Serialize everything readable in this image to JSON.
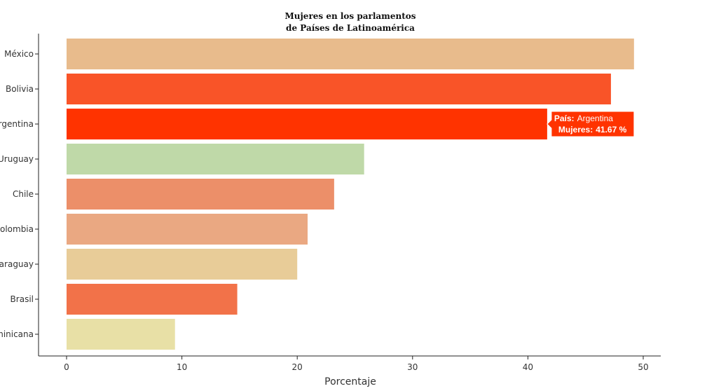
{
  "chart_data": {
    "type": "bar",
    "orientation": "horizontal",
    "title_lines": [
      "Mujeres en los parlamentos",
      "de Países de Latinoamérica"
    ],
    "xlabel": "Porcentaje",
    "ylabel": "",
    "xlim": [
      0,
      51
    ],
    "xticks": [
      0,
      10,
      20,
      30,
      40,
      50
    ],
    "grid": false,
    "legend": "none",
    "categories": [
      "México",
      "Bolivia",
      "Argentina",
      "Uruguay",
      "Chile",
      "Colombia",
      "Paraguay",
      "Brasil",
      "República Dominicana"
    ],
    "category_labels": [
      "México",
      "Bolivia",
      "rgentina",
      "Uruguay",
      "Chile",
      "olombia",
      "araguay",
      "Brasil",
      "minicana"
    ],
    "values": [
      49.2,
      47.2,
      41.67,
      25.8,
      23.2,
      20.9,
      20.0,
      14.8,
      9.4
    ],
    "colors": [
      "#e8bb8c",
      "#f95428",
      "#ff3300",
      "#bfd9a8",
      "#ec8f69",
      "#eaa882",
      "#e8cc98",
      "#f27249",
      "#e8e0a6"
    ],
    "tooltip": {
      "country_label": "País:",
      "country_value": "Argentina",
      "value_label": "Mujeres:",
      "value_text": "41.67 %",
      "color": "#ff3300"
    }
  }
}
